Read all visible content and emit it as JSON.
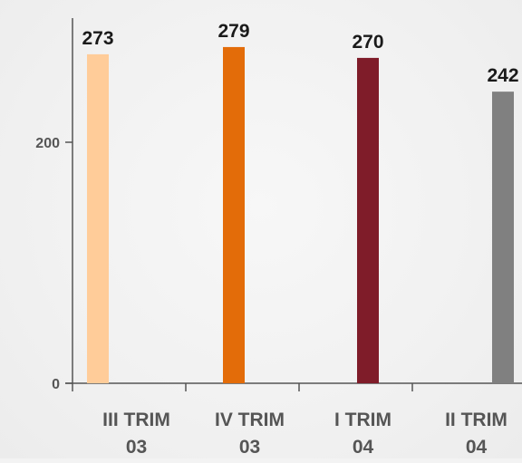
{
  "chart_data": {
    "type": "bar",
    "categories": [
      [
        "III TRIM",
        "03"
      ],
      [
        "IV TRIM",
        "03"
      ],
      [
        "I TRIM",
        "04"
      ],
      [
        "II TRIM",
        "04"
      ]
    ],
    "values": [
      273,
      279,
      270,
      242
    ],
    "data_labels": [
      "273",
      "279",
      "270",
      "242"
    ],
    "bar_colors": [
      "#ffcc99",
      "#e36c09",
      "#7f1c29",
      "#808080"
    ],
    "y_ticks": [
      0,
      200
    ],
    "y_tick_labels": [
      "0",
      "200"
    ],
    "ylim": [
      0,
      300
    ],
    "grid": false,
    "legend": "none",
    "axis_color": "#555555"
  }
}
